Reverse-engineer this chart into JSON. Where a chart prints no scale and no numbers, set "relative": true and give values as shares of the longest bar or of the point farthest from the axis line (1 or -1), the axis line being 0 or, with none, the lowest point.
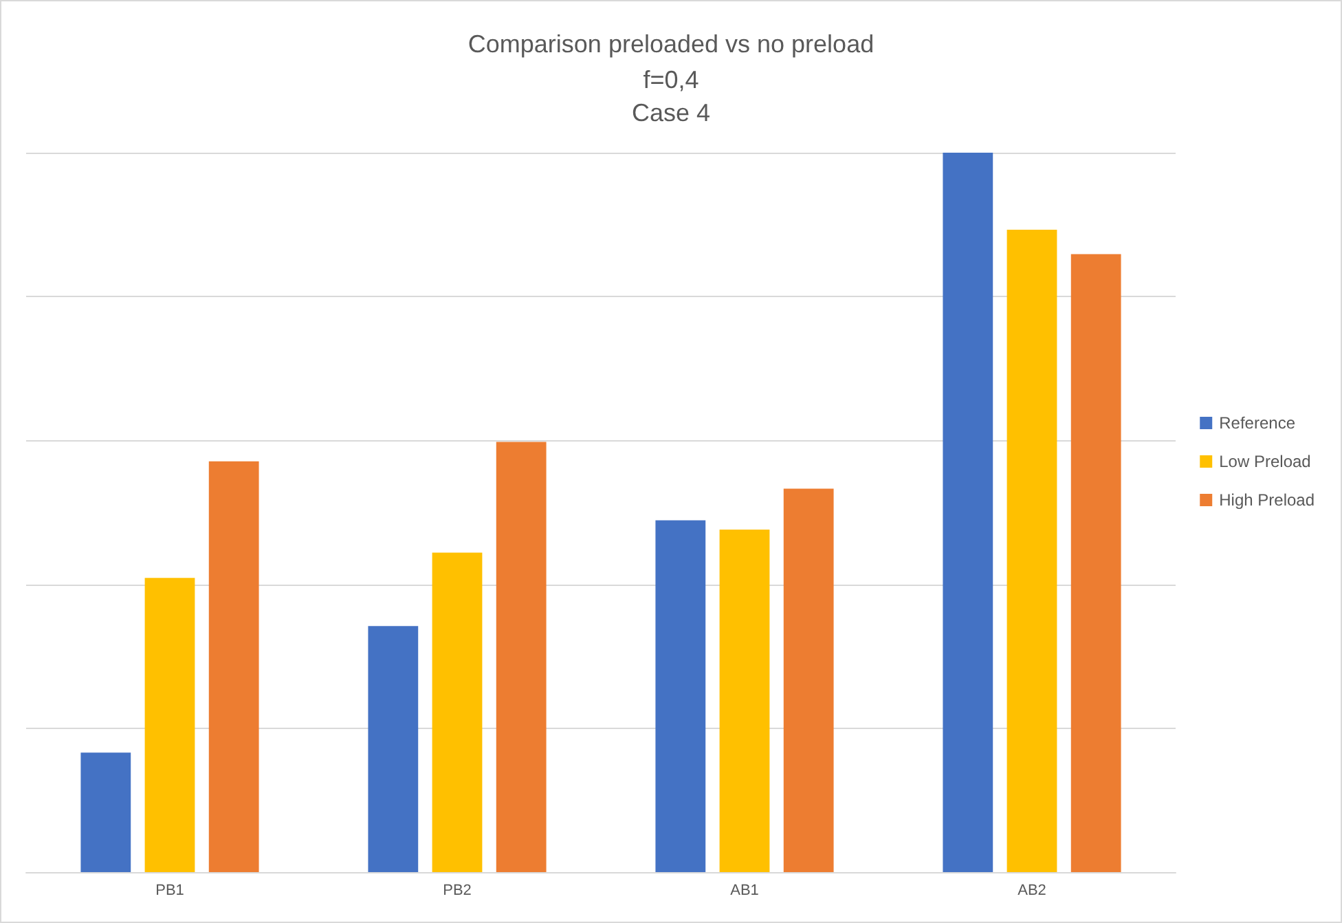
{
  "chart_data": {
    "type": "bar",
    "title": "Comparison preloaded vs no preload",
    "subtitle": "f=0,4\nCase 4",
    "relative": true,
    "grid": "y",
    "legend": "right",
    "categories": [
      "PB1",
      "PB2",
      "AB1",
      "AB2"
    ],
    "series": [
      {
        "name": "Reference",
        "color": "#4472c4",
        "values": [
          0.166,
          0.342,
          0.489,
          1
        ]
      },
      {
        "name": "Low Preload",
        "color": "#ffc000",
        "values": [
          0.409,
          0.444,
          0.476,
          0.893
        ]
      },
      {
        "name": "High Preload",
        "color": "#ed7d31",
        "values": [
          0.571,
          0.598,
          0.533,
          0.859
        ]
      }
    ]
  }
}
